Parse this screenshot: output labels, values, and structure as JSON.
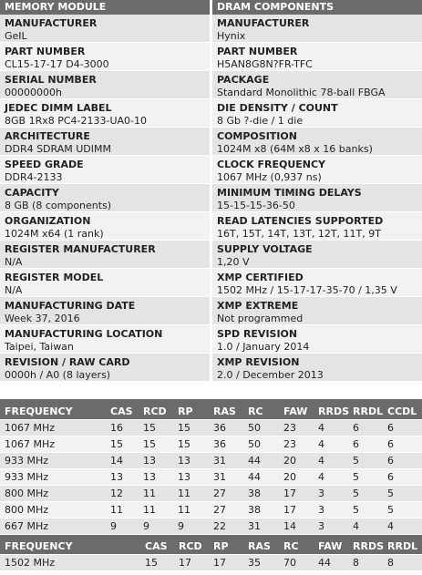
{
  "module": {
    "header": "MEMORY MODULE",
    "fields": [
      {
        "label": "MANUFACTURER",
        "value": "GeIL"
      },
      {
        "label": "PART NUMBER",
        "value": "CL15-17-17 D4-3000"
      },
      {
        "label": "SERIAL NUMBER",
        "value": "00000000h"
      },
      {
        "label": "JEDEC DIMM LABEL",
        "value": "8GB 1Rx8 PC4-2133-UA0-10"
      },
      {
        "label": "ARCHITECTURE",
        "value": "DDR4 SDRAM UDIMM"
      },
      {
        "label": "SPEED GRADE",
        "value": "DDR4-2133"
      },
      {
        "label": "CAPACITY",
        "value": "8 GB (8 components)"
      },
      {
        "label": "ORGANIZATION",
        "value": "1024M x64 (1 rank)"
      },
      {
        "label": "REGISTER MANUFACTURER",
        "value": "N/A"
      },
      {
        "label": "REGISTER MODEL",
        "value": "N/A"
      },
      {
        "label": "MANUFACTURING DATE",
        "value": "Week 37, 2016"
      },
      {
        "label": "MANUFACTURING LOCATION",
        "value": "Taipei, Taiwan"
      },
      {
        "label": "REVISION / RAW CARD",
        "value": "0000h / A0 (8 layers)"
      }
    ]
  },
  "dram": {
    "header": "DRAM COMPONENTS",
    "fields": [
      {
        "label": "MANUFACTURER",
        "value": "Hynix"
      },
      {
        "label": "PART NUMBER",
        "value": "H5AN8G8N?FR-TFC"
      },
      {
        "label": "PACKAGE",
        "value": "Standard Monolithic 78-ball FBGA"
      },
      {
        "label": "DIE DENSITY / COUNT",
        "value": "8 Gb ?-die / 1 die"
      },
      {
        "label": "COMPOSITION",
        "value": "1024M x8 (64M x8 x 16 banks)"
      },
      {
        "label": "CLOCK FREQUENCY",
        "value": "1067 MHz (0,937 ns)"
      },
      {
        "label": "MINIMUM TIMING DELAYS",
        "value": "15-15-15-36-50"
      },
      {
        "label": "READ LATENCIES SUPPORTED",
        "value": "16T, 15T, 14T, 13T, 12T, 11T, 9T"
      },
      {
        "label": "SUPPLY VOLTAGE",
        "value": "1,20 V"
      },
      {
        "label": "XMP CERTIFIED",
        "value": "1502 MHz / 15-17-17-35-70 / 1,35 V"
      },
      {
        "label": "XMP EXTREME",
        "value": "Not programmed"
      },
      {
        "label": "SPD REVISION",
        "value": "1.0 / January 2014"
      },
      {
        "label": "XMP REVISION",
        "value": "2.0 / December 2013"
      }
    ]
  },
  "jedec_timings": {
    "columns": [
      "FREQUENCY",
      "CAS",
      "RCD",
      "RP",
      "RAS",
      "RC",
      "FAW",
      "RRDS",
      "RRDL",
      "CCDL"
    ],
    "rows": [
      [
        "1067 MHz",
        "16",
        "15",
        "15",
        "36",
        "50",
        "23",
        "4",
        "6",
        "6"
      ],
      [
        "1067 MHz",
        "15",
        "15",
        "15",
        "36",
        "50",
        "23",
        "4",
        "6",
        "6"
      ],
      [
        "933 MHz",
        "14",
        "13",
        "13",
        "31",
        "44",
        "20",
        "4",
        "5",
        "6"
      ],
      [
        "933 MHz",
        "13",
        "13",
        "13",
        "31",
        "44",
        "20",
        "4",
        "5",
        "6"
      ],
      [
        "800 MHz",
        "12",
        "11",
        "11",
        "27",
        "38",
        "17",
        "3",
        "5",
        "5"
      ],
      [
        "800 MHz",
        "11",
        "11",
        "11",
        "27",
        "38",
        "17",
        "3",
        "5",
        "5"
      ],
      [
        "667 MHz",
        "9",
        "9",
        "9",
        "22",
        "31",
        "14",
        "3",
        "4",
        "4"
      ]
    ]
  },
  "xmp_timings": {
    "columns": [
      "FREQUENCY",
      "CAS",
      "RCD",
      "RP",
      "RAS",
      "RC",
      "FAW",
      "RRDS",
      "RRDL"
    ],
    "rows": [
      [
        "1502 MHz",
        "15",
        "17",
        "17",
        "35",
        "70",
        "44",
        "8",
        "8"
      ]
    ]
  }
}
